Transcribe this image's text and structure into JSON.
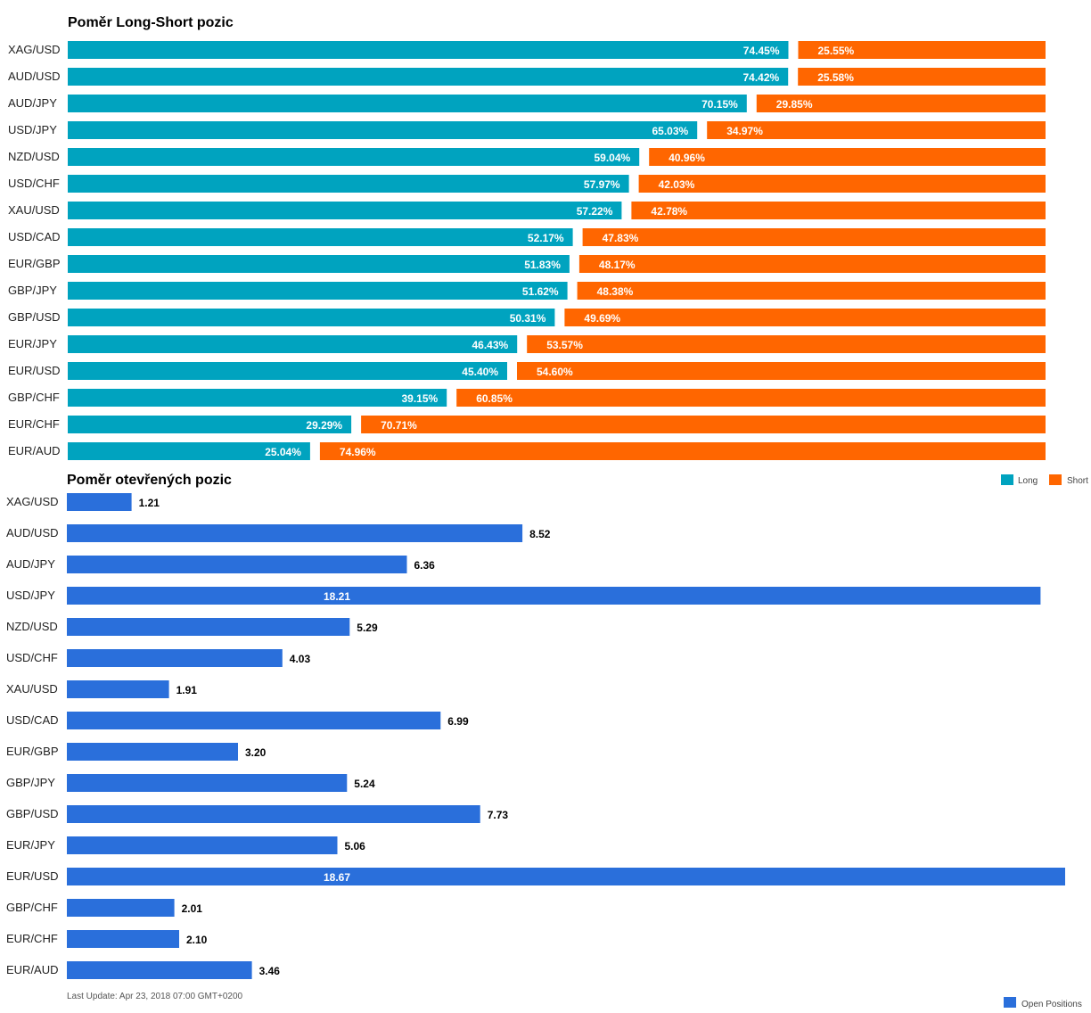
{
  "chart_data": [
    {
      "type": "bar",
      "orientation": "horizontal",
      "stacked": true,
      "title": "Poměr Long-Short pozic",
      "categories": [
        "XAG/USD",
        "AUD/USD",
        "AUD/JPY",
        "USD/JPY",
        "NZD/USD",
        "USD/CHF",
        "XAU/USD",
        "USD/CAD",
        "EUR/GBP",
        "GBP/JPY",
        "GBP/USD",
        "EUR/JPY",
        "EUR/USD",
        "GBP/CHF",
        "EUR/CHF",
        "EUR/AUD"
      ],
      "series": [
        {
          "name": "Long",
          "color": "#00a3bf",
          "values": [
            74.45,
            74.42,
            70.15,
            65.03,
            59.04,
            57.97,
            57.22,
            52.17,
            51.83,
            51.62,
            50.31,
            46.43,
            45.4,
            39.15,
            29.29,
            25.04
          ],
          "labels": [
            "74.45%",
            "74.42%",
            "70.15%",
            "65.03%",
            "59.04%",
            "57.97%",
            "57.22%",
            "52.17%",
            "51.83%",
            "51.62%",
            "50.31%",
            "46.43%",
            "45.40%",
            "39.15%",
            "29.29%",
            "25.04%"
          ]
        },
        {
          "name": "Short",
          "color": "#ff6600",
          "values": [
            25.55,
            25.58,
            29.85,
            34.97,
            40.96,
            42.03,
            42.78,
            47.83,
            48.17,
            48.38,
            49.69,
            53.57,
            54.6,
            60.85,
            70.71,
            74.96
          ],
          "labels": [
            "25.55%",
            "25.58%",
            "29.85%",
            "34.97%",
            "40.96%",
            "42.03%",
            "42.78%",
            "47.83%",
            "48.17%",
            "48.38%",
            "49.69%",
            "53.57%",
            "54.60%",
            "60.85%",
            "70.71%",
            "74.96%"
          ]
        }
      ],
      "xlim": [
        0,
        100
      ],
      "legend": "top-right"
    },
    {
      "type": "bar",
      "orientation": "horizontal",
      "title": "Poměr otevřených pozic",
      "categories": [
        "XAG/USD",
        "AUD/USD",
        "AUD/JPY",
        "USD/JPY",
        "NZD/USD",
        "USD/CHF",
        "XAU/USD",
        "USD/CAD",
        "EUR/GBP",
        "GBP/JPY",
        "GBP/USD",
        "EUR/JPY",
        "EUR/USD",
        "GBP/CHF",
        "EUR/CHF",
        "EUR/AUD"
      ],
      "series": [
        {
          "name": "Open Positions",
          "color": "#2a6fdb",
          "values": [
            1.21,
            8.52,
            6.36,
            18.21,
            5.29,
            4.03,
            1.91,
            6.99,
            3.2,
            5.24,
            7.73,
            5.06,
            18.67,
            2.01,
            2.1,
            3.46
          ],
          "labels": [
            "1.21",
            "8.52",
            "6.36",
            "18.21",
            "5.29",
            "4.03",
            "1.91",
            "6.99",
            "3.20",
            "5.24",
            "7.73",
            "5.06",
            "18.67",
            "2.01",
            "2.10",
            "3.46"
          ]
        }
      ],
      "xlim": [
        0,
        18.67
      ],
      "legend": "bottom-right"
    }
  ],
  "footer": {
    "last_update": "Last Update: Apr 23, 2018 07:00 GMT+0200"
  }
}
